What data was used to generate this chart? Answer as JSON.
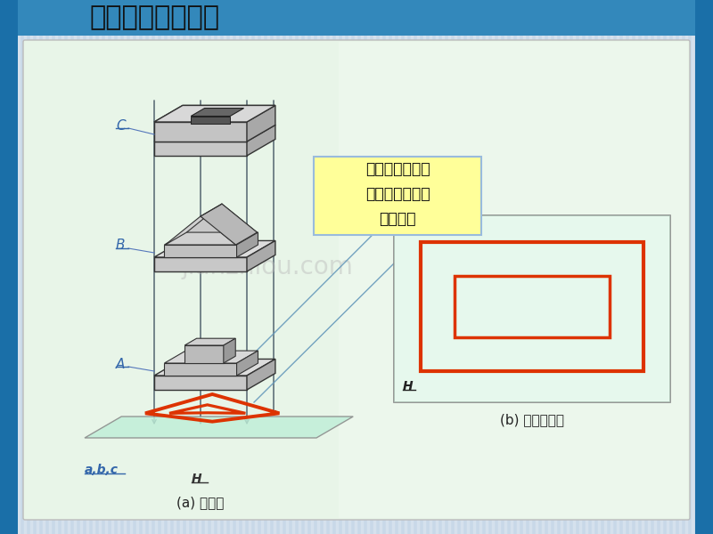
{
  "title": "物体的一面投影：",
  "bg_color": "#c8d8e8",
  "left_bar_color": "#1a6fa8",
  "right_bar_color": "#1a6fa8",
  "top_bar_color": "#3388bb",
  "panel_bg": "#e8f5e8",
  "panel_border": "#bbbbbb",
  "label_C": "C",
  "label_B": "B",
  "label_A": "A",
  "label_abc": "a,b,c",
  "label_H_left": "H",
  "label_H_right": "H",
  "label_3d": "(a) 立体图",
  "label_proj": "(b) 水平投影图",
  "annotation_text": "形体的一面投影\n不能唯一确定其\n空间形状",
  "annotation_bg": "#ffff99",
  "annotation_border": "#99bbdd",
  "red_color": "#dd3300",
  "watermark": "jianzhiou.com",
  "title_fontsize": 22,
  "title_color": "#111111",
  "proj_box_bg": "#f8fff8",
  "proj_box_border": "#888888",
  "ground_color": "#c0eed8",
  "ground_border": "#888888",
  "box_front": "#cccccc",
  "box_top": "#e2e2e2",
  "box_right": "#aaaaaa",
  "box_dark": "#888888"
}
